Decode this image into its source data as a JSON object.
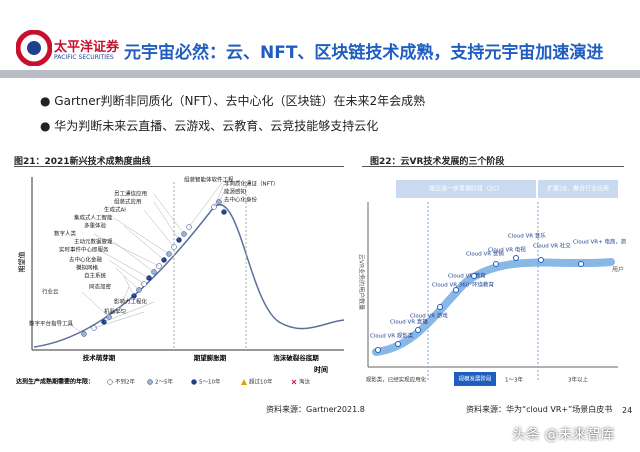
{
  "header": {
    "company": "太平洋证券",
    "company_en": "PACIFIC SECURITIES",
    "title": "元宇宙必然：云、NFT、区块链技术成熟，支持元宇宙加速演进"
  },
  "bullets": [
    "Gartner判断非同质化（NFT）、去中心化（区块链）在未来2年会成熟",
    "华为判断未来云直播、云游戏、云教育、云竞技能够支持云化"
  ],
  "figure21": {
    "caption": "图21：2021新兴技术成熟度曲线",
    "y_label": "期望值",
    "x_label": "时间",
    "phases": [
      "技术萌芽期",
      "期望膨胀期",
      "泡沫破裂谷底期"
    ],
    "points": [
      "非同质化通证（NFT）",
      "能源感知",
      "去中心化身份",
      "组装智能体软件工程",
      "员工通信应用",
      "组装式应用",
      "生成式AI",
      "集成式人工智能",
      "多重体验",
      "数字人类",
      "主动元数据管理",
      "实时事件中心即服务",
      "去中心化金融",
      "模拟网格",
      "自主系统",
      "同态加密",
      "行业云",
      "影响力工程化",
      "机器学习",
      "数字平台指导工具"
    ],
    "legend_title": "达到生产成熟期需要的年限：",
    "legend": [
      "不到2年",
      "2～5年",
      "5～10年",
      "超过10年",
      "淘汰"
    ],
    "source": "资料来源：Gartner2021.8"
  },
  "figure22": {
    "caption": "图22：云VR技术发展的三个阶段",
    "top_bars": [
      "端云进一步发展阶段（2C）",
      "扩展2B，聚合行业应用"
    ],
    "y_label": "云VR业务的用户数量",
    "x_label": "用户",
    "points": [
      "Cloud VR 观影类",
      "Cloud VR 直播",
      "Cloud VR 游戏",
      "Cloud VR 360°环绕教育",
      "Cloud VR 教育",
      "Cloud VR 营销",
      "Cloud VR 电视",
      "Cloud VR 音乐",
      "Cloud VR 社交",
      "Cloud VR+ 电商，旅游，工程等"
    ],
    "stages": [
      "观影类，已经实现应用化",
      "规模发展阶段",
      "1～3年",
      "3年以上"
    ],
    "source": "资料来源：华为“cloud VR+”场景白皮书"
  },
  "page_number": "24",
  "watermark": "头条 @未来智库"
}
